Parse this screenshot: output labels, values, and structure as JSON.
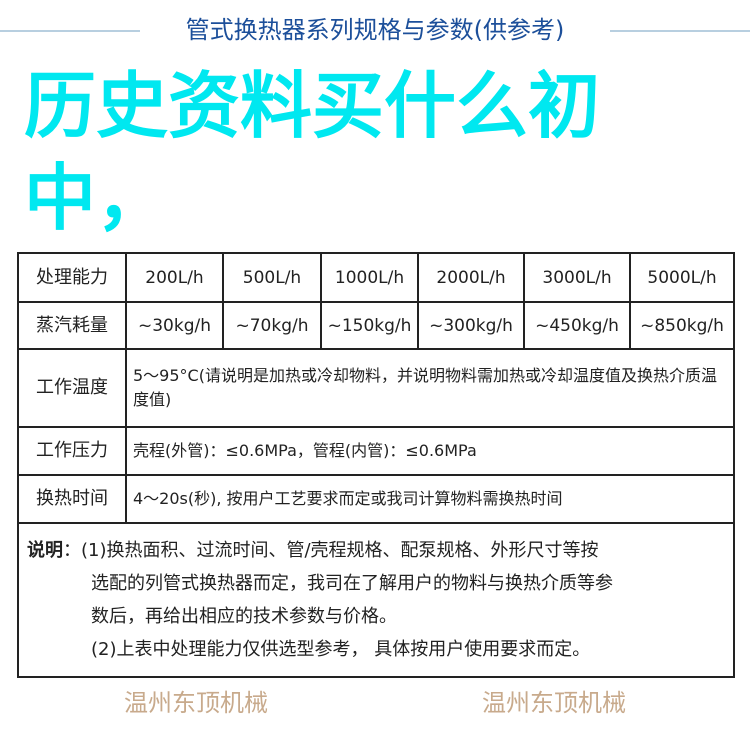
{
  "title": "管式换热器系列规格与参数(供参考)",
  "table": {
    "rows": [
      {
        "label": "处理能力",
        "values": [
          "200L/h",
          "500L/h",
          "1000L/h",
          "2000L/h",
          "3000L/h",
          "5000L/h"
        ]
      },
      {
        "label": "蒸汽耗量",
        "values": [
          "~30kg/h",
          "~70kg/h",
          "~150kg/h",
          "~300kg/h",
          "~450kg/h",
          "~850kg/h"
        ]
      },
      {
        "label": "工作温度",
        "text": "5～95°C(请说明是加热或冷却物料，并说明物料需加热或冷却温度值及换热介质温度值)"
      },
      {
        "label": "工作压力",
        "text": "壳程(外管)：≤0.6MPa，管程(内管)：≤0.6MPa"
      },
      {
        "label": "换热时间",
        "text": "4～20s(秒), 按用户工艺要求而定或我司计算物料需换热时间"
      }
    ],
    "notes": {
      "head": "说明",
      "lines": [
        "(1)换热面积、过流时间、管/壳程规格、配泵规格、外形尺寸等按",
        "选配的列管式换热器而定，我司在了解用户的物料与换热介质等参",
        "数后，再给出相应的技术参数与价格。",
        "(2)上表中处理能力仅供选型参考， 具体按用户使用要求而定。"
      ]
    }
  },
  "watermark": "温州东顶机械",
  "overlay_text": "历史资料买什么初中，",
  "colors": {
    "title": "#1c4f9a",
    "overlay": "#00e8f0"
  }
}
